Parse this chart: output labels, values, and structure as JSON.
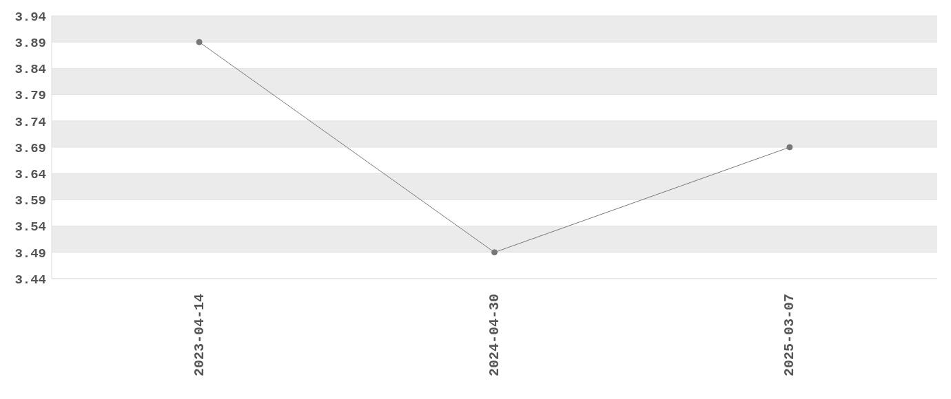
{
  "chart_data": {
    "type": "line",
    "categories": [
      "2023-04-14",
      "2024-04-30",
      "2025-03-07"
    ],
    "series": [
      {
        "color": "#777777",
        "values": [
          3.89,
          3.49,
          3.69
        ]
      }
    ],
    "ylim": [
      3.44,
      3.94
    ],
    "yticks": [
      3.44,
      3.49,
      3.54,
      3.59,
      3.64,
      3.69,
      3.74,
      3.79,
      3.84,
      3.89,
      3.94
    ],
    "grid": "y",
    "marker": "circle",
    "line_style": "solid"
  }
}
